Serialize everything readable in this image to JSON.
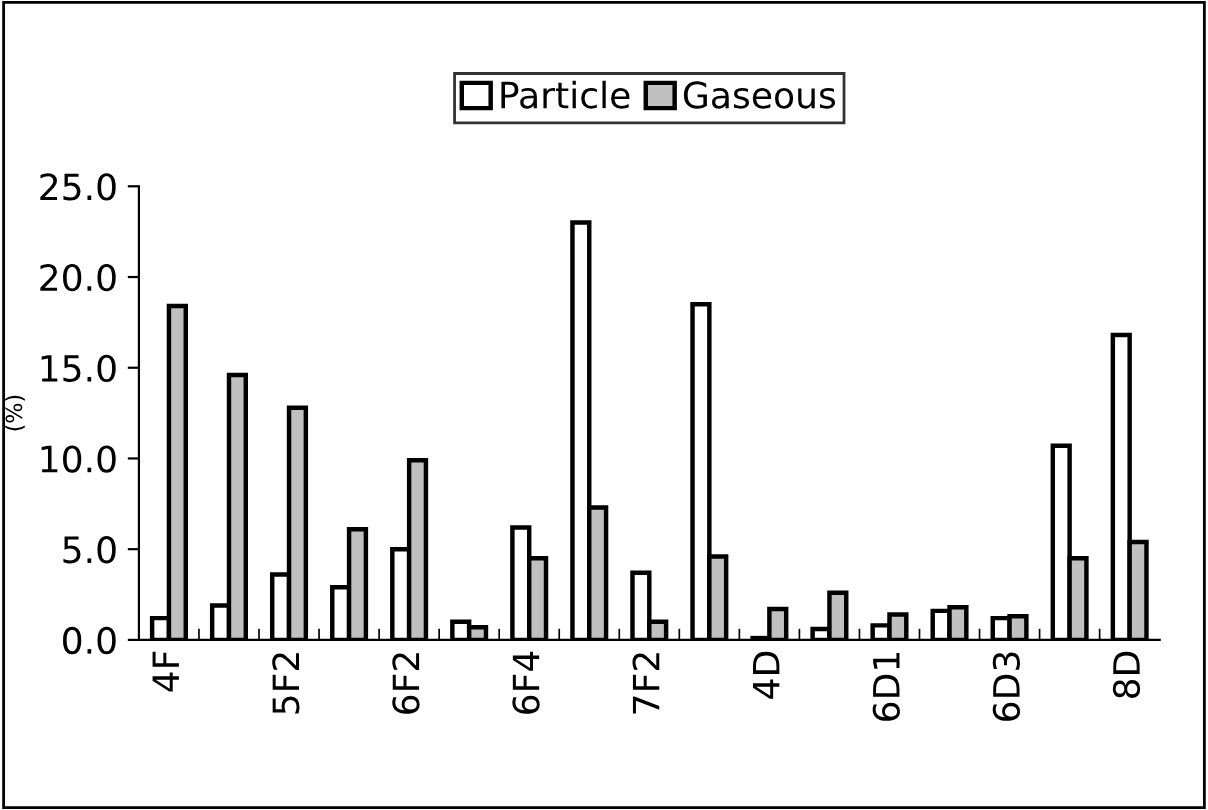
{
  "chart_data": {
    "type": "bar",
    "ylabel": "(%)",
    "categories": [
      "4F",
      null,
      "5F2",
      null,
      "6F2",
      null,
      "6F4",
      null,
      "7F2",
      null,
      "4D",
      null,
      "6D1",
      null,
      "6D3",
      null,
      "8D"
    ],
    "series": [
      {
        "name": "Particle",
        "color": "#ffffff",
        "values": [
          1.2,
          1.9,
          3.6,
          2.9,
          5.0,
          1.0,
          6.2,
          23.0,
          3.7,
          18.5,
          0.1,
          0.6,
          0.8,
          1.6,
          1.2,
          10.7,
          16.8
        ]
      },
      {
        "name": "Gaseous",
        "color": "#c0c0c0",
        "values": [
          18.4,
          14.6,
          12.8,
          6.1,
          9.9,
          0.7,
          4.5,
          7.3,
          1.0,
          4.6,
          1.7,
          2.6,
          1.4,
          1.8,
          1.3,
          4.5,
          5.4
        ]
      }
    ],
    "ylim": [
      0,
      25
    ],
    "yticks": [
      {
        "value": 0,
        "label": "0.0"
      },
      {
        "value": 5,
        "label": "5.0"
      },
      {
        "value": 10,
        "label": "10.0"
      },
      {
        "value": 15,
        "label": "15.0"
      },
      {
        "value": 20,
        "label": "20.0"
      },
      {
        "value": 25,
        "label": "25.0"
      }
    ],
    "legend": "top",
    "grid": false
  }
}
